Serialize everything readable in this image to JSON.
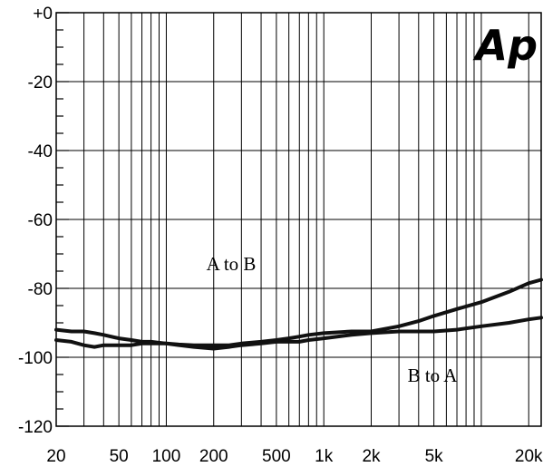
{
  "chart_data": {
    "type": "line",
    "x_scale": "log",
    "xlim": [
      20,
      24000
    ],
    "ylim": [
      -120,
      0
    ],
    "grid": true,
    "x_ticks": [
      {
        "value": 20,
        "label": "20"
      },
      {
        "value": 50,
        "label": "50"
      },
      {
        "value": 100,
        "label": "100"
      },
      {
        "value": 200,
        "label": "200"
      },
      {
        "value": 500,
        "label": "500"
      },
      {
        "value": 1000,
        "label": "1k"
      },
      {
        "value": 2000,
        "label": "2k"
      },
      {
        "value": 5000,
        "label": "5k"
      },
      {
        "value": 20000,
        "label": "20k"
      }
    ],
    "y_ticks": [
      {
        "value": 0,
        "label": "+0"
      },
      {
        "value": -20,
        "label": "-20"
      },
      {
        "value": -40,
        "label": "-40"
      },
      {
        "value": -60,
        "label": "-60"
      },
      {
        "value": -80,
        "label": "-80"
      },
      {
        "value": -100,
        "label": "-100"
      },
      {
        "value": -120,
        "label": "-120"
      }
    ],
    "series": [
      {
        "name": "A to B",
        "x": [
          20,
          25,
          30,
          35,
          40,
          50,
          60,
          70,
          80,
          100,
          120,
          150,
          200,
          250,
          300,
          400,
          500,
          600,
          700,
          800,
          1000,
          1500,
          2000,
          3000,
          4000,
          5000,
          7000,
          10000,
          15000,
          20000,
          24000
        ],
        "values": [
          -92,
          -92.5,
          -92.5,
          -93,
          -93.5,
          -94.5,
          -95,
          -95.5,
          -95.5,
          -96,
          -96.3,
          -96.5,
          -96.5,
          -96.5,
          -96,
          -95.5,
          -95,
          -94.5,
          -94,
          -93.5,
          -93,
          -92.5,
          -92.5,
          -91,
          -89.5,
          -88,
          -86,
          -84,
          -81,
          -78.5,
          -77.5
        ]
      },
      {
        "name": "B to A",
        "x": [
          20,
          25,
          30,
          35,
          40,
          50,
          60,
          70,
          80,
          100,
          120,
          150,
          200,
          250,
          300,
          400,
          500,
          600,
          700,
          800,
          1000,
          1500,
          2000,
          3000,
          4000,
          5000,
          7000,
          10000,
          15000,
          20000,
          24000
        ],
        "values": [
          -95,
          -95.5,
          -96.5,
          -97,
          -96.5,
          -96.5,
          -96.5,
          -96,
          -96,
          -96,
          -96.5,
          -97,
          -97.5,
          -97,
          -96.5,
          -96,
          -95.5,
          -95.5,
          -95.5,
          -95,
          -94.5,
          -93.5,
          -93,
          -92.5,
          -92.5,
          -92.5,
          -92,
          -91,
          -90,
          -89,
          -88.5
        ]
      }
    ],
    "annotations": [
      {
        "text": "A to B",
        "series": 0
      },
      {
        "text": "B to A",
        "series": 1
      }
    ]
  },
  "logo": {
    "text": "Ap",
    "color": "#000000"
  },
  "colors": {
    "line": "#111111",
    "grid": "#000000",
    "background": "#ffffff"
  }
}
